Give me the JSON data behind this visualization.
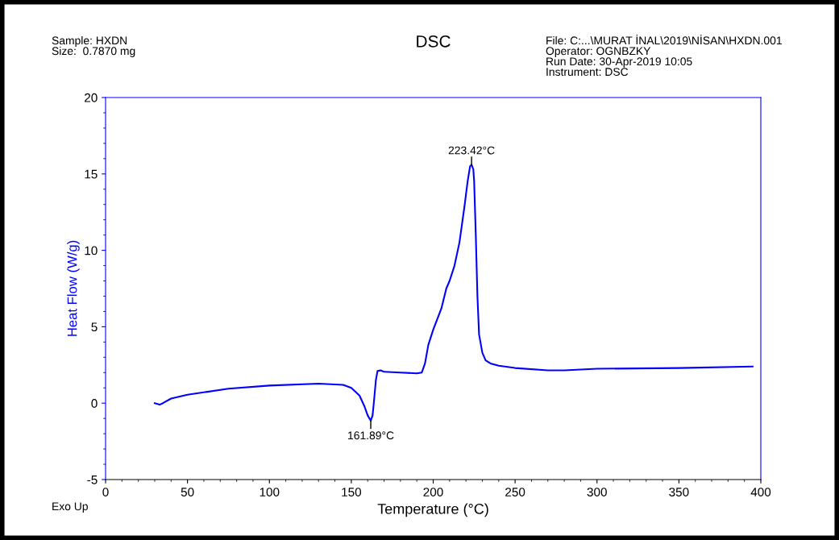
{
  "chart_data": {
    "type": "line",
    "title": "DSC",
    "xlabel": "Temperature (°C)",
    "ylabel": "Heat Flow (W/g)",
    "xlim": [
      0,
      400
    ],
    "xticks": [
      0,
      50,
      100,
      150,
      200,
      250,
      300,
      350,
      400
    ],
    "ylim": [
      -5,
      20
    ],
    "yticks": [
      -5,
      0,
      5,
      10,
      15,
      20
    ],
    "grid": false,
    "legend": false,
    "marker": "none",
    "line_style": "solid",
    "series": [
      {
        "color": "#0000ff",
        "x": [
          30,
          33,
          35,
          40,
          50,
          75,
          100,
          130,
          145,
          150,
          155,
          158,
          160,
          161.89,
          163,
          164,
          165,
          166,
          168,
          170,
          180,
          190,
          193,
          195,
          197,
          200,
          205,
          208,
          210,
          213,
          216,
          219,
          221,
          222.5,
          223.42,
          224.5,
          225,
          226,
          227,
          228,
          230,
          232,
          235,
          240,
          250,
          270,
          280,
          300,
          350,
          395
        ],
        "values": [
          0.0,
          -0.1,
          0.0,
          0.3,
          0.55,
          0.95,
          1.15,
          1.28,
          1.2,
          1.0,
          0.5,
          -0.2,
          -0.8,
          -1.15,
          -0.8,
          0.3,
          1.5,
          2.1,
          2.15,
          2.05,
          2.0,
          1.95,
          2.0,
          2.6,
          3.8,
          4.8,
          6.2,
          7.5,
          8.0,
          9.0,
          10.5,
          12.8,
          14.5,
          15.5,
          15.6,
          15.3,
          14.5,
          11.0,
          7.0,
          4.5,
          3.3,
          2.8,
          2.6,
          2.45,
          2.3,
          2.15,
          2.15,
          2.25,
          2.3,
          2.4
        ]
      }
    ],
    "annotations": [
      {
        "text": "223.42°C",
        "x": 223.42,
        "y": 15.6
      },
      {
        "text": "161.89°C",
        "x": 161.89,
        "y": -1.15
      },
      "Sample: HXDN\nSize:  0.7870 mg",
      "File: C:...\\MURAT İNAL\\2019\\NİSAN\\HXDN.001\nOperator: OGNBZKY\nRun Date: 30-Apr-2019 10:05\nInstrument: DSC",
      "Exo Up"
    ]
  }
}
